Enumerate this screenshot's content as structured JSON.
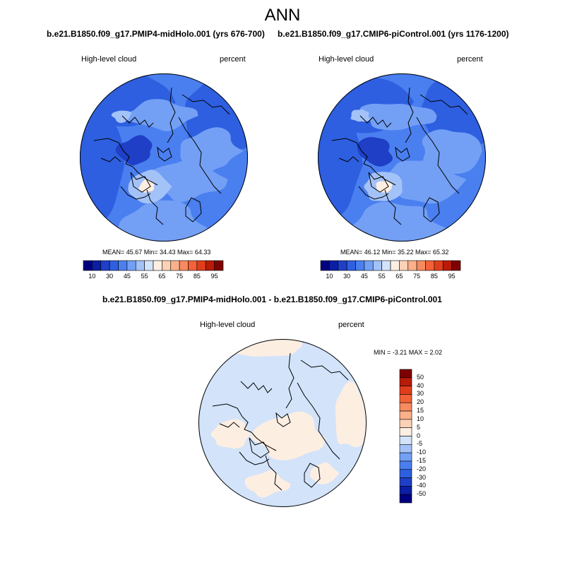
{
  "figure": {
    "title": "ANN",
    "panels": [
      {
        "case": "b.e21.B1850.f09_g17.PMIP4-midHolo.001 (yrs 676-700)",
        "variable": "High-level cloud",
        "units": "percent",
        "stats": "MEAN=  45.67   Min=  34.43   Max=  64.33"
      },
      {
        "case": "b.e21.B1850.f09_g17.CMIP6-piControl.001 (yrs 1176-1200)",
        "variable": "High-level cloud",
        "units": "percent",
        "stats": "MEAN=  46.12   Min=  35.22   Max=  65.32"
      }
    ],
    "difference": {
      "title": "b.e21.B1850.f09_g17.PMIP4-midHolo.001 - b.e21.B1850.f09_g17.CMIP6-piControl.001",
      "variable": "High-level cloud",
      "units": "percent",
      "stats": "MIN =  -3.21 MAX =   2.02"
    }
  },
  "colorbar_abs": {
    "colors": [
      "#00007f",
      "#0a1fa3",
      "#1f3fc6",
      "#2e5fe0",
      "#4a7ff0",
      "#73a0f5",
      "#a3c2f8",
      "#d2e3fa",
      "#fdeee2",
      "#fcd2b6",
      "#fab08a",
      "#f78a60",
      "#f26138",
      "#e03e1b",
      "#b81b08",
      "#7f0000"
    ],
    "tick_labels": [
      "10",
      "30",
      "45",
      "55",
      "65",
      "75",
      "85",
      "95"
    ]
  },
  "colorbar_diff": {
    "colors": [
      "#00007f",
      "#0a1fa3",
      "#1f3fc6",
      "#2e5fe0",
      "#4a7ff0",
      "#73a0f5",
      "#a3c2f8",
      "#d2e3fa",
      "#fdeee2",
      "#fcd2b6",
      "#fab08a",
      "#f78a60",
      "#f26138",
      "#e03e1b",
      "#b81b08",
      "#7f0000"
    ],
    "tick_labels": [
      "50",
      "40",
      "30",
      "20",
      "15",
      "10",
      "5",
      "0",
      "-5",
      "-10",
      "-15",
      "-20",
      "-30",
      "-40",
      "-50"
    ]
  },
  "map_colors": {
    "ocean_mid": "#4a7ff0",
    "cloud_light": "#73a0f5",
    "cloud_lighter": "#a3c2f8",
    "cloud_dark": "#2e5fe0",
    "cloud_darkest": "#1f3fc6",
    "cloud_warm": "#fdeee2",
    "diff_neg": "#d2e3fa",
    "diff_pos": "#fdeee2"
  }
}
